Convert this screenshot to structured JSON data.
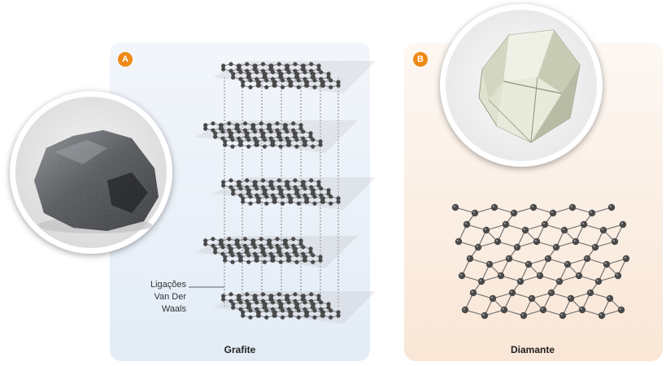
{
  "panel_a": {
    "badge": "A",
    "caption": "Grafite",
    "annotation": [
      "Ligações",
      "Van Der",
      "Waals"
    ],
    "layers": 5
  },
  "panel_b": {
    "badge": "B",
    "caption": "Diamante"
  },
  "colors": {
    "badge": "#ef8a17",
    "atom": "#4a4a4a",
    "bond": "#6a6a6a",
    "layer_fill": "#c9c9cf"
  }
}
